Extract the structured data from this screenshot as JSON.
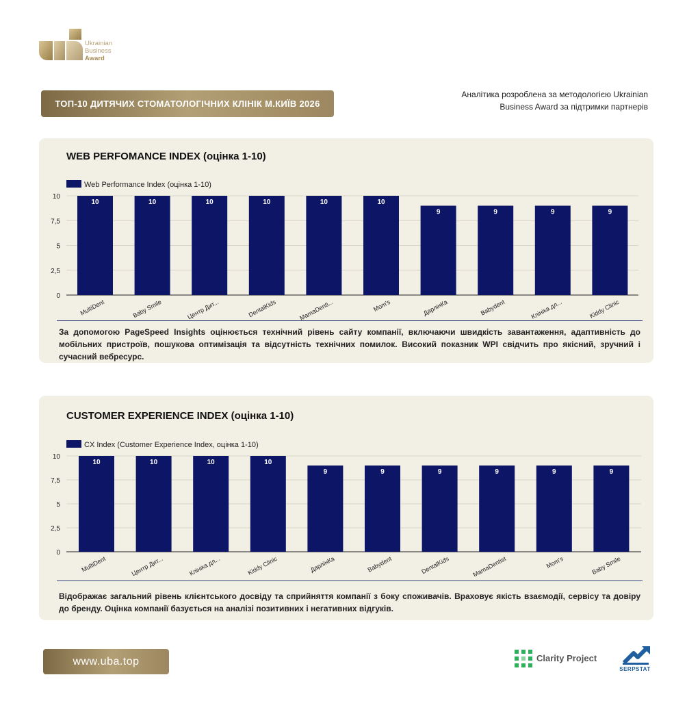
{
  "brand": {
    "logo_line1": "Ukrainian",
    "logo_line2": "Business",
    "logo_line3": "Award",
    "gold": "#a88d55"
  },
  "header": {
    "title": "ТОП-10 ДИТЯЧИХ СТОМАТОЛОГІЧНИХ КЛІНІК М.КИЇВ 2026",
    "methodology_line1": "Аналітика розроблена за методологією Ukrainian",
    "methodology_line2": "Business Award за підтримки партнерів"
  },
  "chart_data": [
    {
      "type": "bar",
      "title": "WEB PERFOMANCE INDEX (оцінка 1-10)",
      "legend": "top-left",
      "grid": true,
      "ylim": [
        0,
        10
      ],
      "yticks": [
        "0",
        "2,5",
        "5",
        "7,5",
        "10"
      ],
      "categories": [
        "MultiDent",
        "Baby Smile",
        "Центр Дит...",
        "DentalKids",
        "MamaDenti...",
        "Mom's",
        "ДарлінКа",
        "Babydent",
        "Клініка дл...",
        "Kiddy Clinic"
      ],
      "series": [
        {
          "name": "Web Performance Index (оцінка 1-10)",
          "values": [
            10,
            10,
            10,
            10,
            10,
            10,
            9,
            9,
            9,
            9
          ],
          "color": "#0d1566"
        }
      ],
      "description": "За допомогою PageSpeed Insights оцінюється технічний рівень сайту компанії, включаючи швидкість завантаження, адаптивність до мобільних пристроїв, пошукова оптимізація та відсутність технічних помилок. Високий показник WPI свідчить про якісний, зручний і сучасний вебресурс."
    },
    {
      "type": "bar",
      "title": "CUSTOMER EXPERIENCE INDEX (оцінка 1-10)",
      "legend": "top-left",
      "grid": true,
      "ylim": [
        0,
        10
      ],
      "yticks": [
        "0",
        "2,5",
        "5",
        "7,5",
        "10"
      ],
      "categories": [
        "MultiDent",
        "Центр Дит...",
        "Клініка дл...",
        "Kiddy Clinic",
        "ДарлінКа",
        "Babydent",
        "DentalKids",
        "MamaDentist",
        "Mom's",
        "Baby Smile"
      ],
      "series": [
        {
          "name": "CX Index (Customer Experience Index, оцінка 1-10)",
          "values": [
            10,
            10,
            10,
            10,
            9,
            9,
            9,
            9,
            9,
            9
          ],
          "color": "#0d1566"
        }
      ],
      "description": "Відображає загальний рівень клієнтського досвіду та сприйняття компанії з боку споживачів. Враховує якість взаємодії, сервісу та довіру до бренду. Оцінка компанії базується на аналізі позитивних і негативних відгуків."
    }
  ],
  "footer": {
    "url": "www.uba.top",
    "partner1": "Clarity Project",
    "partner2": "SERPSTAT"
  }
}
